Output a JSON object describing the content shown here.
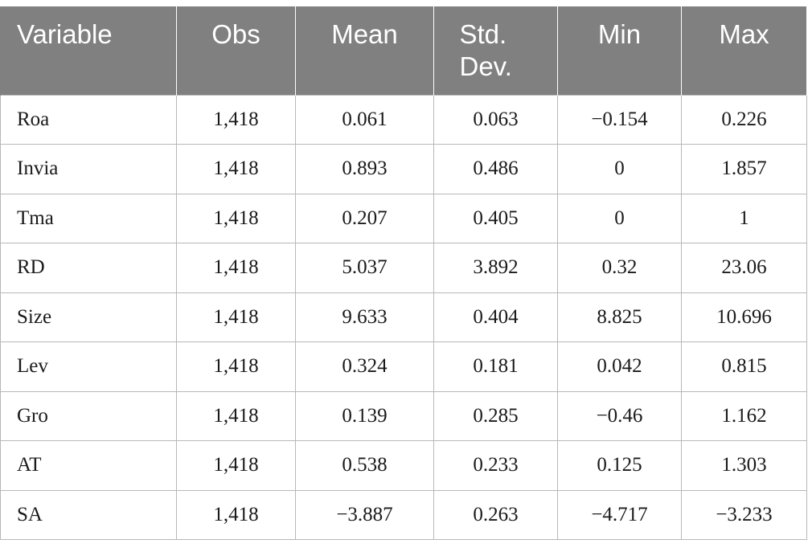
{
  "table": {
    "headers": [
      "Variable",
      "Obs",
      "Mean",
      "Std. Dev.",
      "Min",
      "Max"
    ],
    "rows": [
      [
        "Roa",
        "1,418",
        "0.061",
        "0.063",
        "−0.154",
        "0.226"
      ],
      [
        "Invia",
        "1,418",
        "0.893",
        "0.486",
        "0",
        "1.857"
      ],
      [
        "Tma",
        "1,418",
        "0.207",
        "0.405",
        "0",
        "1"
      ],
      [
        "RD",
        "1,418",
        "5.037",
        "3.892",
        "0.32",
        "23.06"
      ],
      [
        "Size",
        "1,418",
        "9.633",
        "0.404",
        "8.825",
        "10.696"
      ],
      [
        "Lev",
        "1,418",
        "0.324",
        "0.181",
        "0.042",
        "0.815"
      ],
      [
        "Gro",
        "1,418",
        "0.139",
        "0.285",
        "−0.46",
        "1.162"
      ],
      [
        "AT",
        "1,418",
        "0.538",
        "0.233",
        "0.125",
        "1.303"
      ],
      [
        "SA",
        "1,418",
        "−3.887",
        "0.263",
        "−4.717",
        "−3.233"
      ]
    ]
  },
  "colors": {
    "header_background": "#808080",
    "header_text": "#ffffff",
    "grid_line": "#b8b8b8"
  }
}
